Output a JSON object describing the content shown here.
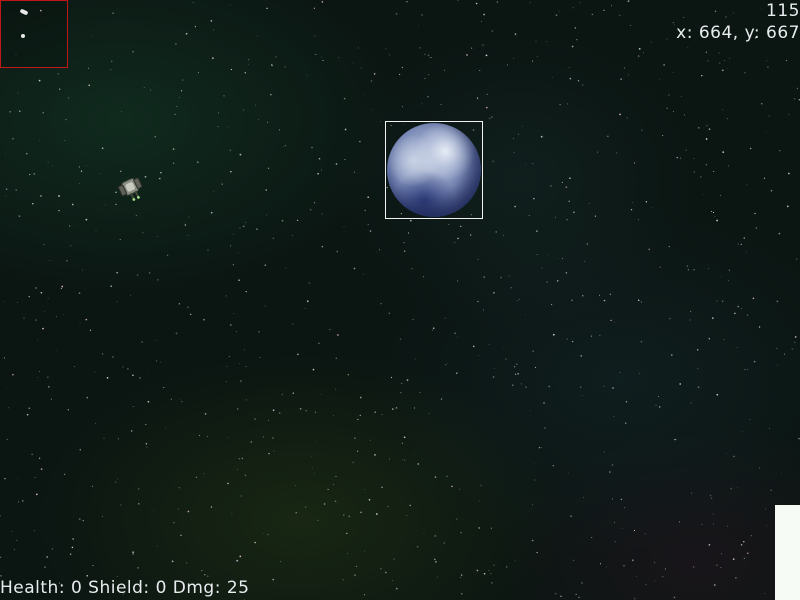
{
  "hud": {
    "top_right": {
      "counter": "115",
      "coordinates": "x: 664, y: 667"
    },
    "bottom_left": {
      "status": "Health: 0 Shield: 0 Dmg: 25"
    }
  },
  "colors": {
    "minimap_border": "#c01818",
    "planet_highlight_box": "#f2f2f2",
    "hud_text": "#e8ecef",
    "background": "#0b1512"
  },
  "icons": {
    "player_ship": "spaceship-icon",
    "planet": "planet-icon"
  }
}
